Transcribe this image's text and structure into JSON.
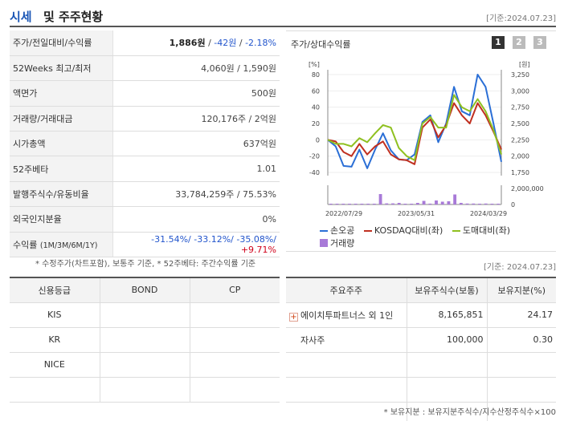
{
  "header": {
    "title_main": "시세",
    "title_rest": "및 주주현황",
    "date": "[기준:2024.07.23]"
  },
  "info_rows": [
    {
      "label": "주가/전일대비/수익률",
      "price": "1,886원",
      "change": "-42원",
      "rate": "-2.18%"
    },
    {
      "label": "52Weeks 최고/최저",
      "value": "4,060원 / 1,590원"
    },
    {
      "label": "액면가",
      "value": "500원"
    },
    {
      "label": "거래량/거래대금",
      "value": "120,176주 / 2억원"
    },
    {
      "label": "시가총액",
      "value": "637억원"
    },
    {
      "label": "52주베타",
      "value": "1.01"
    },
    {
      "label": "발행주식수/유동비율",
      "value": "33,784,259주 / 75.53%"
    },
    {
      "label": "외국인지분율",
      "value": "0%"
    },
    {
      "label": "수익률",
      "label_sub": "(1M/3M/6M/1Y)",
      "r1": "-31.54%/",
      "r2": "-33.12%/",
      "r3": "-35.08%/",
      "r4": "+9.71%"
    }
  ],
  "note1": "* 수정주가(차트포함), 보통주 기준, * 52주베타: 주간수익률 기준",
  "chart_box": {
    "title": "주가/상대수익률",
    "pages": [
      "1",
      "2",
      "3"
    ]
  },
  "chart_data": {
    "type": "line",
    "y_left_unit": "[%]",
    "y_right_unit": "[원]",
    "y_left_ticks": [
      "80",
      "60",
      "40",
      "20",
      "0",
      "-20",
      "-40"
    ],
    "y_right_ticks": [
      "3,250",
      "3,000",
      "2,750",
      "2,500",
      "2,250",
      "2,000",
      "1,750"
    ],
    "y_left_range": [
      -40,
      80
    ],
    "vol_ticks": [
      "2,000,000",
      "0"
    ],
    "vol_range": [
      0,
      2000000
    ],
    "x_ticks": [
      "2022/07/29",
      "2023/05/31",
      "2024/03/29"
    ],
    "series": [
      {
        "name": "손오공",
        "color": "#2b6fd6",
        "values": [
          0,
          -8,
          -32,
          -33,
          -12,
          -35,
          -12,
          8,
          -13,
          -24,
          -25,
          -18,
          22,
          30,
          -3,
          20,
          65,
          35,
          30,
          80,
          65,
          20,
          -27
        ]
      },
      {
        "name": "KOSDAQ대비(좌)",
        "color": "#c03020",
        "values": [
          0,
          -2,
          -15,
          -20,
          -5,
          -18,
          -8,
          -2,
          -18,
          -24,
          -25,
          -30,
          15,
          25,
          3,
          18,
          45,
          30,
          20,
          45,
          30,
          10,
          -12
        ]
      },
      {
        "name": "도매대비(좌)",
        "color": "#8fc020",
        "values": [
          0,
          -5,
          -5,
          -8,
          2,
          -3,
          8,
          18,
          15,
          -10,
          -20,
          -25,
          20,
          28,
          15,
          15,
          55,
          40,
          35,
          50,
          35,
          12,
          -18
        ]
      }
    ],
    "volume": {
      "name": "거래량",
      "color": "#a87ad8",
      "values": [
        50000,
        20000,
        80000,
        30000,
        60000,
        40000,
        50000,
        100000,
        1300000,
        140000,
        140000,
        200000,
        80000,
        100000,
        200000,
        450000,
        110000,
        500000,
        350000,
        400000,
        1250000,
        200000,
        120000,
        120000,
        80000,
        120000,
        60000,
        30000
      ]
    }
  },
  "date2": "[기준: 2024.07.23]",
  "credit": {
    "headers": [
      "신용등급",
      "BOND",
      "CP"
    ],
    "rows": [
      [
        "KIS",
        "",
        ""
      ],
      [
        "KR",
        "",
        ""
      ],
      [
        "NICE",
        "",
        ""
      ],
      [
        "",
        "",
        ""
      ]
    ]
  },
  "holder": {
    "headers": [
      "주요주주",
      "보유주식수(보통)",
      "보유지분(%)"
    ],
    "rows": [
      {
        "name": "에이치투파트너스 외 1인",
        "expand": "+",
        "shares": "8,165,851",
        "pct": "24.17"
      },
      {
        "name": "자사주",
        "shares": "100,000",
        "pct": "0.30"
      },
      {
        "name": "",
        "shares": "",
        "pct": ""
      },
      {
        "name": "",
        "shares": "",
        "pct": ""
      },
      {
        "name": "",
        "shares": "",
        "pct": ""
      }
    ]
  },
  "note2": "* 보유지분 : 보유지분주식수/지수산정주식수×100"
}
